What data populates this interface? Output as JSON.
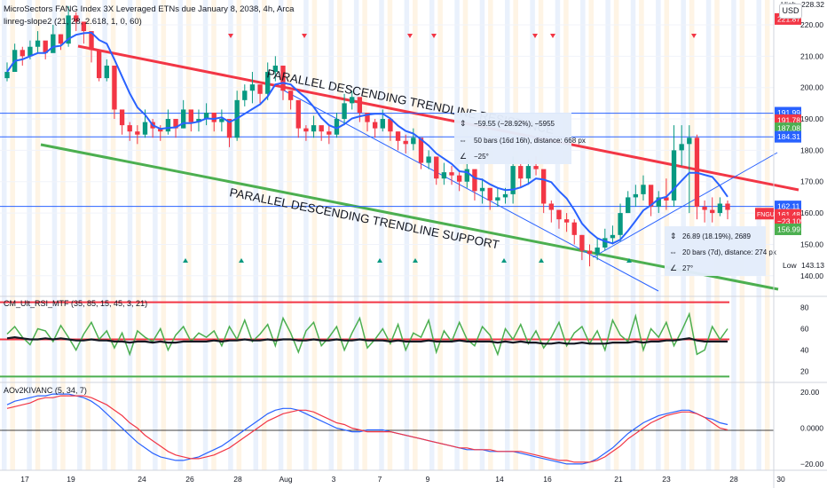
{
  "header": {
    "title": "MicroSectors FANG Index 3X Leveraged ETNs due January 8, 2038, 4h, Arca",
    "indicator": "linreg-slope2 (21, 28, 2.618, 1, 0, 60)",
    "currency": "USD"
  },
  "colors": {
    "up": "#089981",
    "down": "#f23645",
    "ma": "#2962ff",
    "resistance": "#f23645",
    "support": "#4caf50",
    "hline": "#2962ff",
    "rsi": "#4caf50",
    "osc_fast": "#2962ff",
    "osc_slow": "#f23645"
  },
  "chart_data": [
    {
      "type": "candlestick",
      "ylim": [
        134,
        220
      ],
      "y_ticks": [
        140,
        150,
        160,
        170,
        180,
        190,
        200,
        210,
        220
      ],
      "x_tick_labels": [
        "17",
        "19",
        "24",
        "26",
        "28",
        "Aug",
        "3",
        "7",
        "9",
        "14",
        "16",
        "21",
        "23",
        "28",
        "30"
      ],
      "close": [
        205,
        212,
        210,
        213,
        215,
        211,
        217,
        214,
        223,
        221,
        218,
        212,
        203,
        207,
        193,
        188,
        186,
        185,
        189,
        187,
        186,
        190,
        187,
        193,
        189,
        190,
        192,
        189,
        190,
        184,
        196,
        199,
        201,
        198,
        205,
        207,
        199,
        196,
        187,
        186,
        188,
        186,
        185,
        190,
        195,
        197,
        192,
        189,
        187,
        190,
        186,
        183,
        182,
        184,
        176,
        178,
        171,
        173,
        172,
        170,
        174,
        167,
        168,
        164,
        165,
        166,
        175,
        171,
        175,
        174,
        163,
        161,
        158,
        157,
        153,
        148,
        147,
        149,
        152,
        153,
        160,
        165,
        166,
        169,
        162,
        165,
        164,
        180,
        182,
        184,
        162,
        161,
        160,
        163,
        161
      ],
      "high": [
        208,
        214,
        213,
        215,
        218,
        214,
        220,
        217,
        226,
        224,
        221,
        214,
        209,
        209,
        196,
        190,
        189,
        188,
        193,
        190,
        188,
        193,
        189,
        196,
        192,
        193,
        195,
        192,
        193,
        187,
        199,
        201,
        205,
        200,
        208,
        210,
        201,
        199,
        193,
        188,
        191,
        187,
        188,
        192,
        198,
        199,
        195,
        192,
        190,
        193,
        189,
        186,
        185,
        187,
        183,
        180,
        175,
        176,
        175,
        173,
        177,
        171,
        171,
        168,
        168,
        168,
        178,
        176,
        177,
        178,
        167,
        164,
        161,
        160,
        158,
        153,
        150,
        152,
        155,
        156,
        163,
        167,
        169,
        172,
        168,
        167,
        171,
        188,
        188,
        188,
        185,
        164,
        165,
        165,
        164
      ],
      "low": [
        202,
        206,
        207,
        209,
        211,
        209,
        212,
        212,
        213,
        218,
        214,
        208,
        202,
        202,
        190,
        185,
        183,
        182,
        184,
        184,
        183,
        185,
        184,
        187,
        186,
        186,
        188,
        186,
        186,
        181,
        183,
        194,
        195,
        195,
        196,
        202,
        196,
        193,
        184,
        183,
        184,
        183,
        182,
        184,
        188,
        193,
        189,
        186,
        184,
        186,
        183,
        180,
        179,
        180,
        174,
        174,
        169,
        169,
        169,
        167,
        168,
        164,
        163,
        161,
        162,
        163,
        163,
        168,
        169,
        172,
        160,
        157,
        155,
        154,
        150,
        145,
        143,
        145,
        148,
        150,
        151,
        160,
        162,
        164,
        159,
        160,
        161,
        162,
        175,
        160,
        158,
        157,
        157,
        159,
        158
      ],
      "high_label": "High",
      "high_value": "228.32",
      "low_label": "Low",
      "low_value": "143.13",
      "price_labels": [
        "221.87",
        "191.99",
        "191.78",
        "187.08",
        "184.31",
        "162.11",
        "161.48",
        "−23.10%",
        "156.99"
      ],
      "symbol_tag": "FNGU",
      "hlines": [
        191.8,
        184.3,
        162.1
      ],
      "annotations": {
        "resistance_label": "PARALLEL DESCENDING TRENDLINE RESISTANCE",
        "support_label": "PARALLEL DESCENDING TRENDLINE SUPPORT",
        "box1": [
          "−59.55 (−28.92%), −5955",
          "50 bars (16d 16h), distance: 668 px",
          "−25°"
        ],
        "box2": [
          "26.89 (18.19%), 2689",
          "20 bars (7d), distance: 274 px",
          "27°"
        ]
      }
    },
    {
      "type": "line",
      "title": "CM_Ult_RSI_MTF (35, 85, 15, 45, 3, 21)",
      "ylim": [
        12,
        88
      ],
      "y_ticks": [
        20,
        40,
        60,
        80
      ],
      "levels": [
        85,
        50,
        15
      ],
      "series": [
        {
          "values": [
            55,
            62,
            52,
            45,
            60,
            58,
            48,
            63,
            52,
            40,
            55,
            66,
            50,
            58,
            42,
            56,
            36,
            58,
            52,
            48,
            60,
            40,
            54,
            62,
            48,
            56,
            52,
            58,
            44,
            62,
            50,
            68,
            48,
            55,
            64,
            44,
            70,
            56,
            38,
            58,
            66,
            44,
            52,
            62,
            40,
            56,
            70,
            42,
            50,
            60,
            46,
            64,
            40,
            56,
            52,
            68,
            38,
            58,
            48,
            66,
            50,
            44,
            62,
            54,
            36,
            60,
            50,
            64,
            46,
            58,
            42,
            52,
            66,
            44,
            56,
            62,
            46,
            58,
            40,
            68,
            54,
            48,
            72,
            40,
            60,
            52,
            66,
            44,
            58,
            74,
            36,
            40,
            62,
            50,
            60
          ]
        },
        {
          "values": [
            51,
            52,
            51,
            50,
            50,
            51,
            50,
            51,
            50,
            49,
            49,
            50,
            49,
            49,
            48,
            48,
            47,
            48,
            48,
            47,
            48,
            47,
            47,
            48,
            48,
            48,
            48,
            49,
            48,
            49,
            49,
            50,
            49,
            49,
            50,
            49,
            50,
            50,
            49,
            49,
            50,
            49,
            49,
            50,
            49,
            49,
            50,
            49,
            49,
            49,
            48,
            49,
            48,
            48,
            48,
            49,
            48,
            48,
            48,
            49,
            48,
            48,
            48,
            48,
            47,
            48,
            47,
            48,
            47,
            47,
            46,
            46,
            47,
            46,
            46,
            47,
            46,
            46,
            46,
            47,
            47,
            47,
            48,
            47,
            48,
            48,
            49,
            49,
            50,
            51,
            49,
            48,
            48,
            48,
            48
          ]
        }
      ]
    },
    {
      "type": "line",
      "title": "AOv2KIVANC (5, 34, 7)",
      "ylim": [
        -22.5,
        24
      ],
      "y_ticks": [
        20.0,
        0.0,
        -20.0
      ],
      "y_tick_labels": [
        "20.00",
        "0.0000",
        "−20.00"
      ],
      "series": [
        {
          "values": [
            13,
            15,
            16,
            17,
            18,
            18,
            19,
            19,
            19,
            18,
            17,
            15,
            12,
            8,
            4,
            0,
            -4,
            -8,
            -11,
            -14,
            -16,
            -17,
            -18,
            -18,
            -17,
            -16,
            -14,
            -12,
            -10,
            -7,
            -4,
            -1,
            2,
            5,
            8,
            10,
            11,
            11,
            10,
            8,
            6,
            4,
            2,
            0,
            -1,
            -2,
            -2,
            -1,
            -1,
            -1,
            -2,
            -3,
            -4,
            -5,
            -6,
            -7,
            -8,
            -9,
            -10,
            -11,
            -12,
            -12,
            -12,
            -13,
            -13,
            -13,
            -13,
            -14,
            -15,
            -16,
            -17,
            -18,
            -19,
            -20,
            -20,
            -20,
            -19,
            -17,
            -14,
            -11,
            -7,
            -3,
            0,
            3,
            5,
            7,
            8,
            9,
            10,
            10,
            8,
            6,
            5,
            3,
            2
          ]
        },
        {
          "values": [
            11,
            12,
            13,
            14,
            16,
            17,
            17,
            18,
            18,
            18,
            18,
            17,
            15,
            13,
            10,
            7,
            3,
            0,
            -4,
            -7,
            -10,
            -13,
            -15,
            -16,
            -17,
            -17,
            -16,
            -15,
            -13,
            -11,
            -8,
            -5,
            -2,
            1,
            4,
            6,
            8,
            9,
            10,
            10,
            9,
            7,
            5,
            3,
            2,
            0,
            -1,
            -2,
            -2,
            -2,
            -2,
            -3,
            -4,
            -5,
            -6,
            -7,
            -8,
            -9,
            -10,
            -11,
            -11,
            -12,
            -12,
            -12,
            -13,
            -13,
            -13,
            -13,
            -14,
            -15,
            -16,
            -17,
            -18,
            -18,
            -19,
            -19,
            -19,
            -18,
            -16,
            -13,
            -10,
            -6,
            -3,
            0,
            3,
            5,
            7,
            8,
            9,
            9,
            8,
            6,
            3,
            0,
            -1
          ]
        }
      ]
    }
  ]
}
